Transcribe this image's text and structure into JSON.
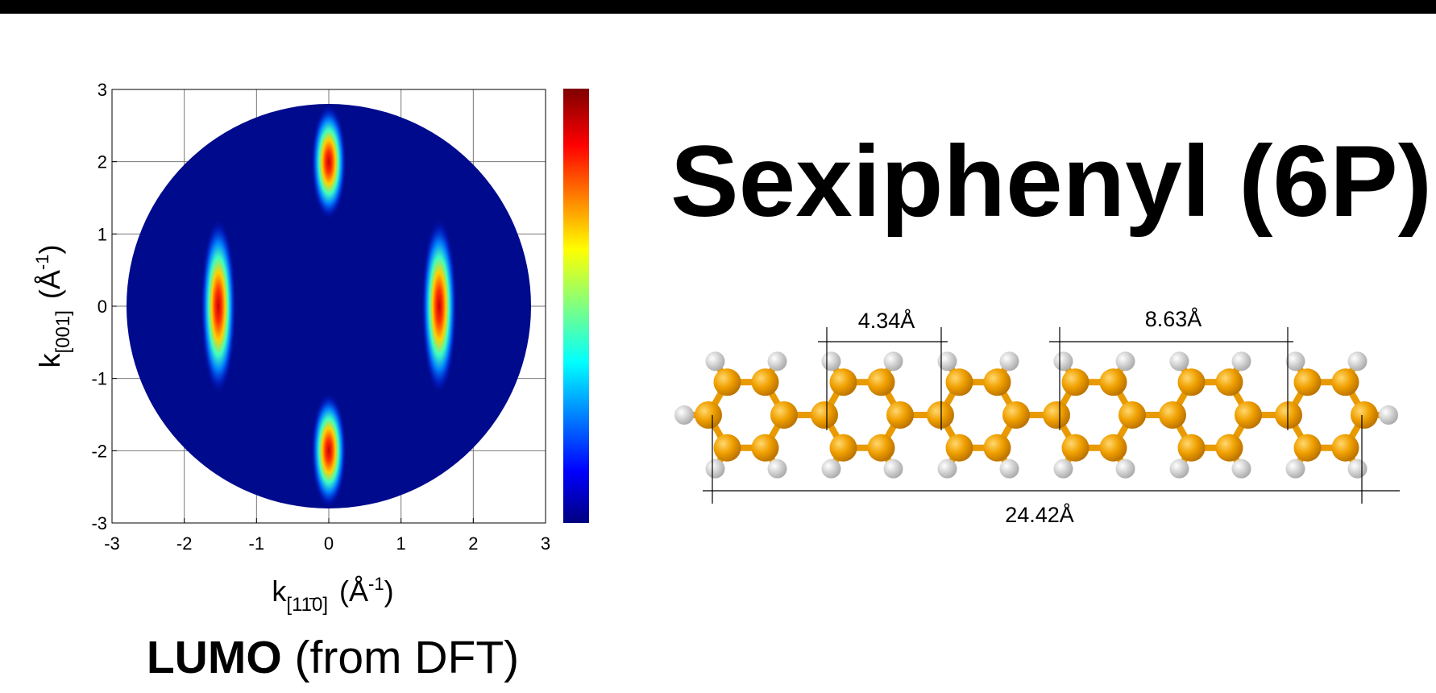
{
  "title": "Sexiphenyl (6P)",
  "plot": {
    "xlim": [
      -3,
      3
    ],
    "ylim": [
      -3,
      3
    ],
    "xticks": [
      -3,
      -2,
      -1,
      0,
      1,
      2,
      3
    ],
    "yticks": [
      -3,
      -2,
      -1,
      0,
      1,
      2,
      3
    ],
    "x_label": {
      "symbol": "k",
      "subscript": "[11̄0]",
      "unit": "(Å",
      "superscript": "-1",
      "close": ")"
    },
    "y_label": {
      "symbol": "k",
      "subscript": "[001]",
      "unit": "(Å",
      "superscript": "-1",
      "close": ")"
    },
    "caption": {
      "bold": "LUMO",
      "rest": "(from DFT)"
    }
  },
  "molecule": {
    "short_distance": "4.34Å",
    "medium_distance": "8.63Å",
    "long_distance": "24.42Å"
  }
}
